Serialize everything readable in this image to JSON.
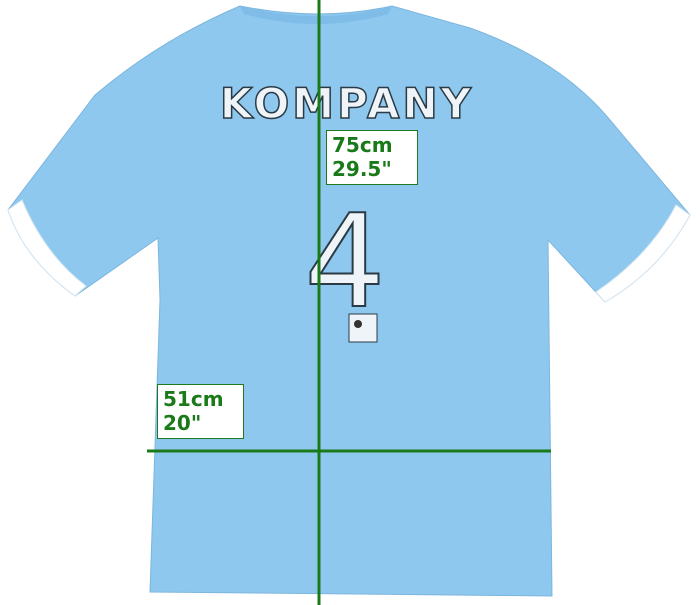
{
  "shirt": {
    "name_print": "KOMPANY",
    "number_print": "4",
    "color": "#8ec8ef",
    "trim_color": "#ffffff"
  },
  "measurements": {
    "line_color": "#1a7a1a",
    "length": {
      "cm": "75cm",
      "inches": "29.5\""
    },
    "width": {
      "cm": "51cm",
      "inches": "20\""
    }
  }
}
